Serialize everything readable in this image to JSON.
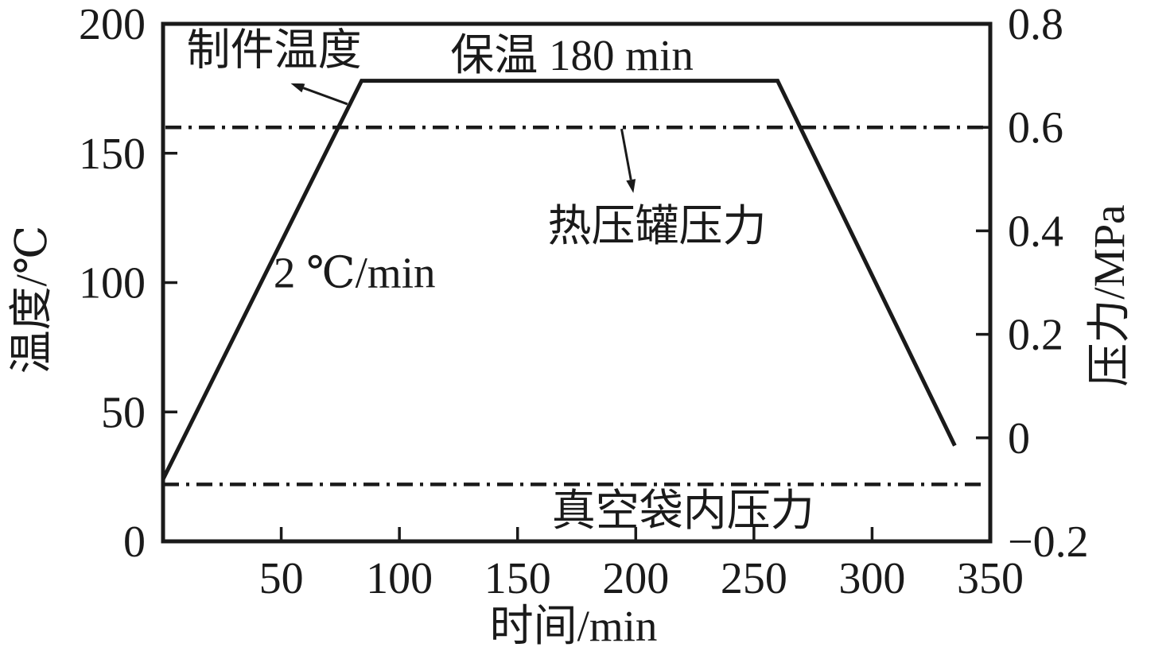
{
  "colors": {
    "line": "#1a1a1a",
    "background": "#ffffff"
  },
  "chart_data": {
    "type": "line",
    "title": "",
    "description_visible_text_only": true,
    "x_axis": {
      "label": "时间/min",
      "min": 0,
      "max": 350,
      "ticks": [
        {
          "value": 50,
          "label": "50"
        },
        {
          "value": 100,
          "label": "100"
        },
        {
          "value": 150,
          "label": "150"
        },
        {
          "value": 200,
          "label": "200"
        },
        {
          "value": 250,
          "label": "250"
        },
        {
          "value": 300,
          "label": "300"
        },
        {
          "value": 350,
          "label": "350"
        }
      ]
    },
    "y_axis_left": {
      "label": "温度/℃",
      "min": 0,
      "max": 200,
      "ticks": [
        {
          "value": 0,
          "label": "0"
        },
        {
          "value": 50,
          "label": "50"
        },
        {
          "value": 100,
          "label": "100"
        },
        {
          "value": 150,
          "label": "150"
        },
        {
          "value": 200,
          "label": "200"
        }
      ]
    },
    "y_axis_right": {
      "label": "压力/MPa",
      "min": -0.2,
      "max": 0.8,
      "ticks": [
        {
          "value": -0.2,
          "label": "−0.2"
        },
        {
          "value": 0,
          "label": "0"
        },
        {
          "value": 0.2,
          "label": "0.2"
        },
        {
          "value": 0.4,
          "label": "0.4"
        },
        {
          "value": 0.6,
          "label": "0.6"
        },
        {
          "value": 0.8,
          "label": "0.8"
        }
      ]
    },
    "grid": false,
    "legend": "none (inline annotations)",
    "series": [
      {
        "name": "制件温度",
        "axis": "left",
        "style": "solid",
        "points": [
          [
            0,
            24
          ],
          [
            84,
            178
          ],
          [
            260,
            178
          ],
          [
            335,
            37
          ]
        ]
      },
      {
        "name": "热压罐压力",
        "axis": "right",
        "style": "dashdot",
        "points": [
          [
            1,
            0.6
          ],
          [
            349,
            0.6
          ]
        ]
      },
      {
        "name": "真空袋内压力",
        "axis": "right",
        "style": "dashdot",
        "points": [
          [
            0,
            -0.09
          ],
          [
            347,
            -0.09
          ]
        ]
      }
    ],
    "annotations": [
      {
        "name": "part-temperature",
        "text": "制件温度",
        "label_pos": {
          "t": 47,
          "T": 190
        },
        "arrow": {
          "from": {
            "t": 78,
            "T": 169
          },
          "to": {
            "t": 54,
            "T": 177
          }
        }
      },
      {
        "name": "hold-time",
        "text": "保温 180 min",
        "label_pos": {
          "t": 173,
          "T": 188
        }
      },
      {
        "name": "ramp-rate",
        "text": "2 ℃/min",
        "label_pos": {
          "t": 81,
          "T": 104
        }
      },
      {
        "name": "autoclave-pressure",
        "text": "热压罐压力",
        "label_pos": {
          "t": 209,
          "P": 0.41
        },
        "arrow": {
          "from": {
            "t": 194,
            "P": 0.597
          },
          "to": {
            "t": 199,
            "P": 0.473
          }
        }
      },
      {
        "name": "vacuum-bag-pressure",
        "text": "真空袋内压力",
        "label_pos": {
          "t": 220,
          "P": -0.14
        }
      }
    ]
  }
}
